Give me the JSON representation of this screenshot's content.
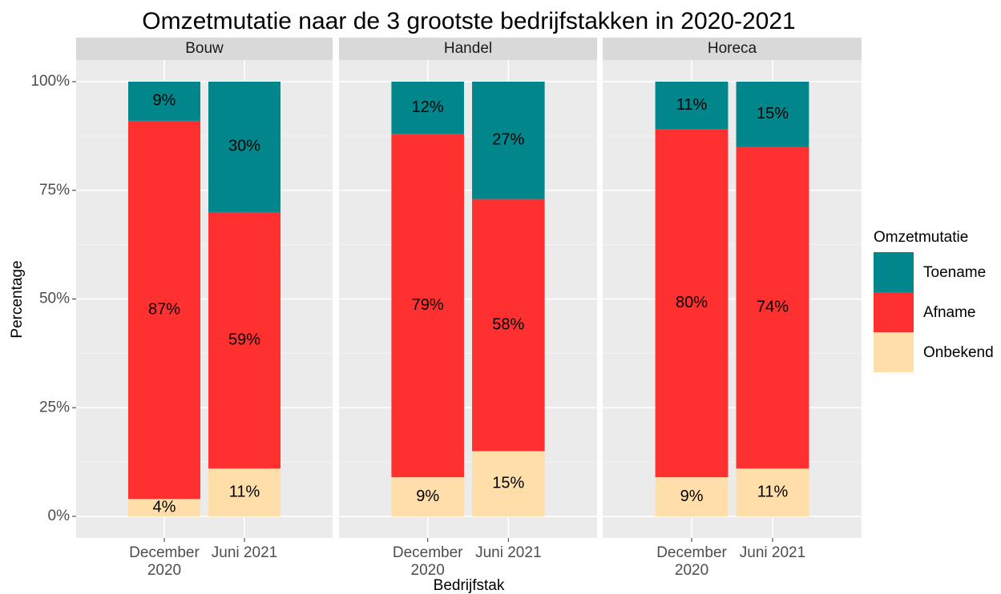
{
  "chart_data": {
    "type": "bar",
    "stacked": true,
    "title": "Omzetmutatie naar de 3 grootste bedrijfstakken in 2020-2021",
    "x_label": "Bedrijfstak",
    "y_label": "Percentage",
    "legend_title": "Omzetmutatie",
    "legend": "right",
    "grid": true,
    "categories": [
      "December 2020",
      "Juni 2021"
    ],
    "series": [
      {
        "name": "Toename",
        "color": "#00868b"
      },
      {
        "name": "Afname",
        "color": "#ff3030"
      },
      {
        "name": "Onbekend",
        "color": "#ffdeaa"
      }
    ],
    "ylim": [
      0,
      100
    ],
    "yticks": [
      {
        "value": 0,
        "label": "0%"
      },
      {
        "value": 25,
        "label": "25%"
      },
      {
        "value": 50,
        "label": "50%"
      },
      {
        "value": 75,
        "label": "75%"
      },
      {
        "value": 100,
        "label": "100%"
      }
    ],
    "facets": [
      {
        "title": "Bouw",
        "values": [
          [
            9,
            30
          ],
          [
            87,
            59
          ],
          [
            4,
            11
          ]
        ],
        "value_labels": [
          [
            "9%",
            "30%"
          ],
          [
            "87%",
            "59%"
          ],
          [
            "4%",
            "11%"
          ]
        ]
      },
      {
        "title": "Handel",
        "values": [
          [
            12,
            27
          ],
          [
            79,
            58
          ],
          [
            9,
            15
          ]
        ],
        "value_labels": [
          [
            "12%",
            "27%"
          ],
          [
            "79%",
            "58%"
          ],
          [
            "9%",
            "15%"
          ]
        ]
      },
      {
        "title": "Horeca",
        "values": [
          [
            11,
            15
          ],
          [
            80,
            74
          ],
          [
            9,
            11
          ]
        ],
        "value_labels": [
          [
            "11%",
            "15%"
          ],
          [
            "80%",
            "74%"
          ],
          [
            "9%",
            "11%"
          ]
        ]
      }
    ]
  }
}
